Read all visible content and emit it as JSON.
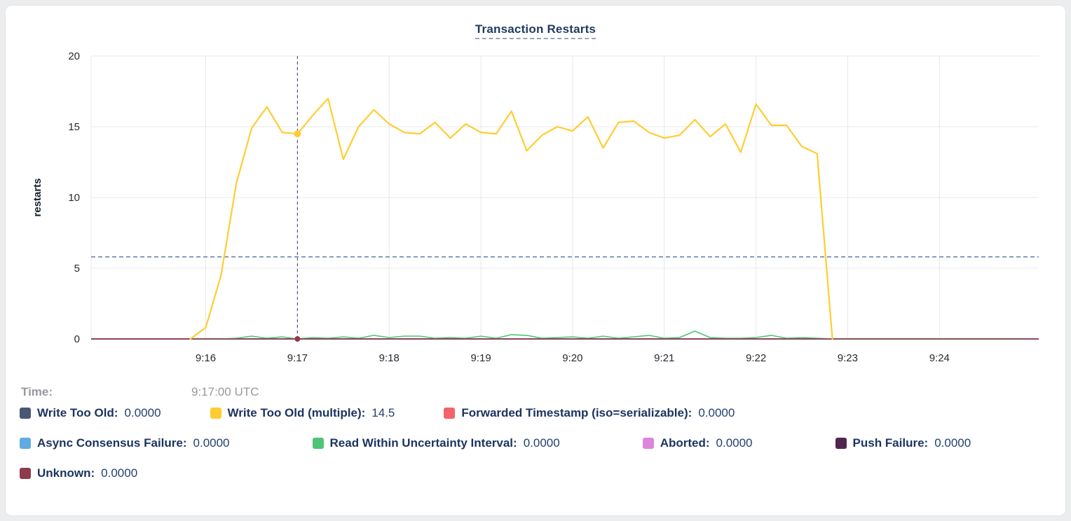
{
  "title": "Transaction Restarts",
  "footer": {
    "time_label": "Time:",
    "time_value": "9:17:00 UTC"
  },
  "legend": {
    "items": [
      {
        "label": "Write Too Old:",
        "value": "0.0000",
        "color": "#475872"
      },
      {
        "label": "Write Too Old (multiple):",
        "value": "14.5",
        "color": "#ffcd32"
      },
      {
        "label": "Forwarded Timestamp (iso=serializable):",
        "value": "0.0000",
        "color": "#f2646a"
      },
      {
        "label": "Async Consensus Failure:",
        "value": "0.0000",
        "color": "#62abe0"
      },
      {
        "label": "Read Within Uncertainty Interval:",
        "value": "0.0000",
        "color": "#4ec476"
      },
      {
        "label": "Aborted:",
        "value": "0.0000",
        "color": "#dd85dd"
      },
      {
        "label": "Push Failure:",
        "value": "0.0000",
        "color": "#52254f"
      },
      {
        "label": "Unknown:",
        "value": "0.0000",
        "color": "#8f3b4c"
      }
    ]
  },
  "chart_data": {
    "type": "line",
    "title": "Transaction Restarts",
    "xlabel": "",
    "ylabel": "restarts",
    "ylim": [
      0,
      20
    ],
    "yticks": [
      0,
      5,
      10,
      15,
      20
    ],
    "grid": true,
    "legend_position": "bottom",
    "x_domain": [
      "9:14:45",
      "9:25:05"
    ],
    "xticks": [
      {
        "label": "9:16",
        "time": "9:16:00"
      },
      {
        "label": "9:17",
        "time": "9:17:00"
      },
      {
        "label": "9:18",
        "time": "9:18:00"
      },
      {
        "label": "9:19",
        "time": "9:19:00"
      },
      {
        "label": "9:20",
        "time": "9:20:00"
      },
      {
        "label": "9:21",
        "time": "9:21:00"
      },
      {
        "label": "9:22",
        "time": "9:22:00"
      },
      {
        "label": "9:23",
        "time": "9:23:00"
      },
      {
        "label": "9:24",
        "time": "9:24:00"
      }
    ],
    "avg_line": 5.8,
    "crosshair": {
      "time": "9:17:00",
      "points": [
        {
          "series": "Write Too Old (multiple)",
          "value": 14.5,
          "color": "#ffcd32",
          "r": 5
        },
        {
          "series": "Unknown",
          "value": 0,
          "color": "#8f3b4c",
          "r": 4
        }
      ]
    },
    "x": [
      "9:15:50",
      "9:16:00",
      "9:16:10",
      "9:16:20",
      "9:16:30",
      "9:16:40",
      "9:16:50",
      "9:17:00",
      "9:17:10",
      "9:17:20",
      "9:17:30",
      "9:17:40",
      "9:17:50",
      "9:18:00",
      "9:18:10",
      "9:18:20",
      "9:18:30",
      "9:18:40",
      "9:18:50",
      "9:19:00",
      "9:19:10",
      "9:19:20",
      "9:19:30",
      "9:19:40",
      "9:19:50",
      "9:20:00",
      "9:20:10",
      "9:20:20",
      "9:20:30",
      "9:20:40",
      "9:20:50",
      "9:21:00",
      "9:21:10",
      "9:21:20",
      "9:21:30",
      "9:21:40",
      "9:21:50",
      "9:22:00",
      "9:22:10",
      "9:22:20",
      "9:22:30",
      "9:22:40",
      "9:22:50",
      "9:23:00",
      "9:23:10",
      "9:23:20",
      "9:23:30",
      "9:23:40",
      "9:23:50",
      "9:24:00",
      "9:24:10",
      "9:24:20",
      "9:24:30",
      "9:24:40",
      "9:24:50",
      "9:25:00"
    ],
    "series": [
      {
        "name": "Write Too Old",
        "color": "#475872",
        "constant": 0
      },
      {
        "name": "Forwarded Timestamp (iso=serializable)",
        "color": "#f2646a",
        "constant": 0
      },
      {
        "name": "Async Consensus Failure",
        "color": "#62abe0",
        "constant": 0
      },
      {
        "name": "Aborted",
        "color": "#dd85dd",
        "constant": 0
      },
      {
        "name": "Push Failure",
        "color": "#52254f",
        "constant": 0
      },
      {
        "name": "Read Within Uncertainty Interval",
        "color": "#4ec476",
        "width": 1.6,
        "values": [
          0,
          0,
          0,
          0.05,
          0.2,
          0.05,
          0.15,
          0,
          0.1,
          0.05,
          0.15,
          0.05,
          0.25,
          0.1,
          0.2,
          0.2,
          0.05,
          0.1,
          0.05,
          0.2,
          0.05,
          0.3,
          0.25,
          0.05,
          0.1,
          0.15,
          0.05,
          0.2,
          0.05,
          0.15,
          0.25,
          0.05,
          0.1,
          0.55,
          0.1,
          0.05,
          0.05,
          0.1,
          0.25,
          0.05,
          0.1,
          0.05,
          0,
          0,
          0,
          0,
          0,
          0,
          0,
          0,
          0,
          0,
          0,
          0,
          0,
          0
        ]
      },
      {
        "name": "Unknown",
        "color": "#8f3b4c",
        "constant": 0
      },
      {
        "name": "Write Too Old (multiple)",
        "color": "#ffcd32",
        "width": 2.2,
        "values": [
          0,
          0.8,
          4.5,
          11,
          14.9,
          16.4,
          14.6,
          14.5,
          15.8,
          17,
          12.7,
          15,
          16.2,
          15.2,
          14.6,
          14.5,
          15.3,
          14.2,
          15.2,
          14.6,
          14.5,
          16.1,
          13.3,
          14.4,
          15,
          14.7,
          15.7,
          13.5,
          15.3,
          15.4,
          14.6,
          14.2,
          14.4,
          15.5,
          14.3,
          15.2,
          13.2,
          16.6,
          15.1,
          15.1,
          13.6,
          13.1,
          0,
          null,
          null,
          null,
          null,
          null,
          null,
          null,
          null,
          null,
          null,
          null,
          null,
          null
        ]
      }
    ]
  }
}
